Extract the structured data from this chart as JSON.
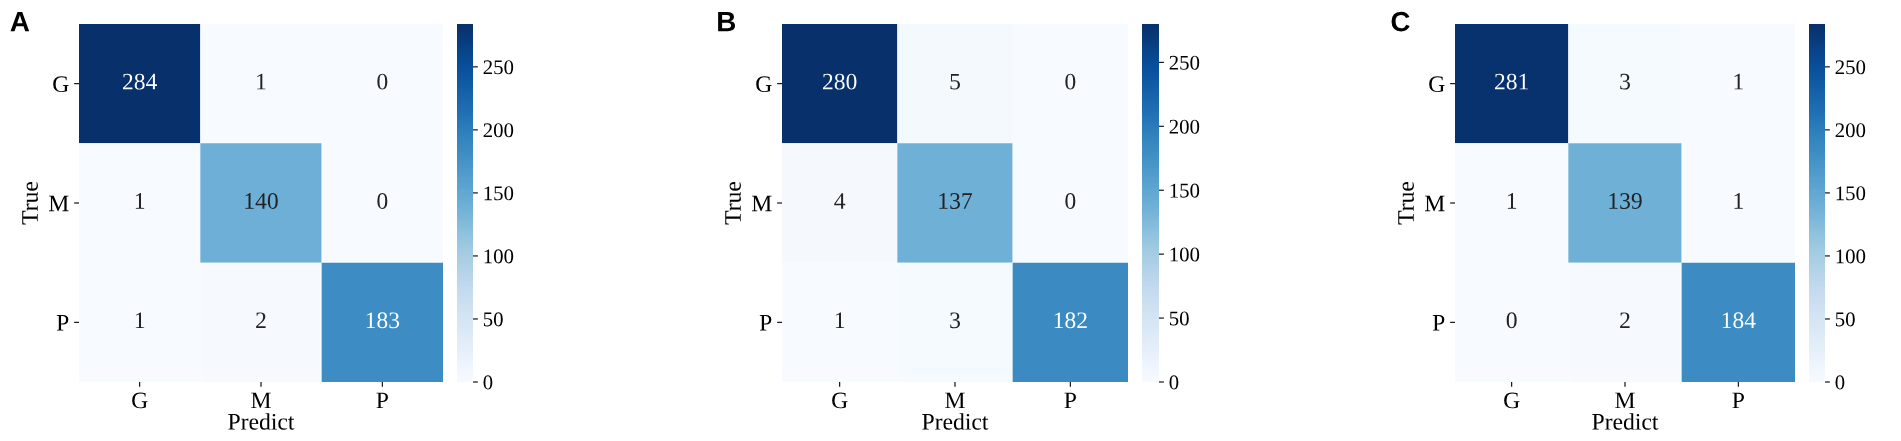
{
  "chart_data": [
    {
      "type": "heatmap",
      "title": "A",
      "categories": [
        "G",
        "M",
        "P"
      ],
      "y_categories": [
        "G",
        "M",
        "P"
      ],
      "xlabel": "Predict",
      "ylabel": "True",
      "cells": [
        [
          284,
          1,
          0
        ],
        [
          1,
          140,
          0
        ],
        [
          1,
          2,
          183
        ]
      ],
      "data_labels": true,
      "clim": [
        0,
        284
      ],
      "cticks": [
        0,
        50,
        100,
        150,
        200,
        250
      ]
    },
    {
      "type": "heatmap",
      "title": "B",
      "categories": [
        "G",
        "M",
        "P"
      ],
      "y_categories": [
        "G",
        "M",
        "P"
      ],
      "xlabel": "Predict",
      "ylabel": "True",
      "cells": [
        [
          280,
          5,
          0
        ],
        [
          4,
          137,
          0
        ],
        [
          1,
          3,
          182
        ]
      ],
      "data_labels": true,
      "clim": [
        0,
        280
      ],
      "cticks": [
        0,
        50,
        100,
        150,
        200,
        250
      ]
    },
    {
      "type": "heatmap",
      "title": "C",
      "categories": [
        "G",
        "M",
        "P"
      ],
      "y_categories": [
        "G",
        "M",
        "P"
      ],
      "xlabel": "Predict",
      "ylabel": "True",
      "cells": [
        [
          281,
          3,
          1
        ],
        [
          1,
          139,
          1
        ],
        [
          0,
          2,
          184
        ]
      ],
      "data_labels": true,
      "clim": [
        0,
        284
      ],
      "cticks": [
        0,
        50,
        100,
        150,
        200,
        250
      ]
    }
  ]
}
